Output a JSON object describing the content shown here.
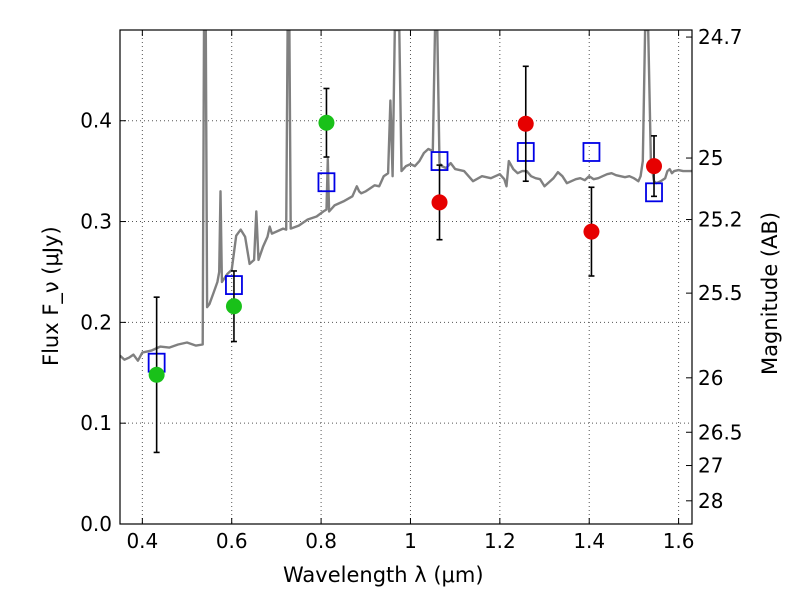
{
  "chart_data": {
    "type": "scatter",
    "xlabel": "Wavelength λ (μm)",
    "ylabel": "Flux F_ν (μJy)",
    "y2label": "Magnitude (AB)",
    "xlim": [
      0.35,
      1.63
    ],
    "ylim": [
      0.0,
      0.49
    ],
    "grid": true,
    "x_ticks": [
      {
        "value": 0.4,
        "label": "0.4"
      },
      {
        "value": 0.6,
        "label": "0.6"
      },
      {
        "value": 0.8,
        "label": "0.8"
      },
      {
        "value": 1.0,
        "label": "1"
      },
      {
        "value": 1.2,
        "label": "1.2"
      },
      {
        "value": 1.4,
        "label": "1.4"
      },
      {
        "value": 1.6,
        "label": "1.6"
      }
    ],
    "y_ticks": [
      {
        "value": 0.0,
        "label": "0.0"
      },
      {
        "value": 0.1,
        "label": "0.1"
      },
      {
        "value": 0.2,
        "label": "0.2"
      },
      {
        "value": 0.3,
        "label": "0.3"
      },
      {
        "value": 0.4,
        "label": "0.4"
      }
    ],
    "y2_ticks": [
      {
        "flux": 0.483,
        "label": "24.7"
      },
      {
        "flux": 0.363,
        "label": "25"
      },
      {
        "flux": 0.302,
        "label": "25.2"
      },
      {
        "flux": 0.229,
        "label": "25.5"
      },
      {
        "flux": 0.145,
        "label": "26"
      },
      {
        "flux": 0.091,
        "label": "26.5"
      },
      {
        "flux": 0.058,
        "label": "27"
      },
      {
        "flux": 0.023,
        "label": "28"
      }
    ],
    "colors": {
      "model": "#808080",
      "green": "#19c119",
      "red": "#e60000",
      "box": "#0000e6",
      "errorbar": "#000000",
      "grid": "#555555"
    },
    "series": [
      {
        "marker": "circle-green",
        "points": [
          {
            "x": 0.432,
            "y": 0.148,
            "err_low": 0.077,
            "err_high": 0.077
          },
          {
            "x": 0.605,
            "y": 0.216,
            "err_low": 0.035,
            "err_high": 0.035
          },
          {
            "x": 0.812,
            "y": 0.398,
            "err_low": 0.034,
            "err_high": 0.034
          }
        ]
      },
      {
        "marker": "circle-red",
        "points": [
          {
            "x": 1.065,
            "y": 0.319,
            "err_low": 0.037,
            "err_high": 0.037
          },
          {
            "x": 1.258,
            "y": 0.397,
            "err_low": 0.057,
            "err_high": 0.057
          },
          {
            "x": 1.405,
            "y": 0.29,
            "err_low": 0.044,
            "err_high": 0.044
          },
          {
            "x": 1.545,
            "y": 0.355,
            "err_low": 0.03,
            "err_high": 0.03
          }
        ]
      },
      {
        "marker": "square-open-blue",
        "points": [
          {
            "x": 0.432,
            "y": 0.16
          },
          {
            "x": 0.605,
            "y": 0.237
          },
          {
            "x": 0.812,
            "y": 0.339
          },
          {
            "x": 1.065,
            "y": 0.36
          },
          {
            "x": 1.258,
            "y": 0.369
          },
          {
            "x": 1.405,
            "y": 0.369
          },
          {
            "x": 1.545,
            "y": 0.329
          }
        ]
      },
      {
        "marker": "line-gray",
        "points": [
          [
            0.35,
            0.167
          ],
          [
            0.36,
            0.163
          ],
          [
            0.37,
            0.165
          ],
          [
            0.38,
            0.168
          ],
          [
            0.39,
            0.162
          ],
          [
            0.4,
            0.17
          ],
          [
            0.42,
            0.172
          ],
          [
            0.44,
            0.176
          ],
          [
            0.46,
            0.175
          ],
          [
            0.48,
            0.178
          ],
          [
            0.5,
            0.18
          ],
          [
            0.52,
            0.177
          ],
          [
            0.535,
            0.178
          ],
          [
            0.538,
            0.49
          ],
          [
            0.542,
            0.49
          ],
          [
            0.545,
            0.215
          ],
          [
            0.55,
            0.218
          ],
          [
            0.56,
            0.23
          ],
          [
            0.568,
            0.24
          ],
          [
            0.572,
            0.25
          ],
          [
            0.575,
            0.33
          ],
          [
            0.578,
            0.24
          ],
          [
            0.59,
            0.248
          ],
          [
            0.6,
            0.252
          ],
          [
            0.61,
            0.286
          ],
          [
            0.62,
            0.292
          ],
          [
            0.63,
            0.285
          ],
          [
            0.64,
            0.258
          ],
          [
            0.65,
            0.262
          ],
          [
            0.655,
            0.31
          ],
          [
            0.66,
            0.262
          ],
          [
            0.67,
            0.275
          ],
          [
            0.68,
            0.285
          ],
          [
            0.685,
            0.295
          ],
          [
            0.69,
            0.288
          ],
          [
            0.7,
            0.29
          ],
          [
            0.715,
            0.293
          ],
          [
            0.722,
            0.292
          ],
          [
            0.725,
            0.49
          ],
          [
            0.729,
            0.49
          ],
          [
            0.732,
            0.293
          ],
          [
            0.75,
            0.296
          ],
          [
            0.77,
            0.302
          ],
          [
            0.79,
            0.305
          ],
          [
            0.805,
            0.31
          ],
          [
            0.812,
            0.312
          ],
          [
            0.815,
            0.362
          ],
          [
            0.818,
            0.31
          ],
          [
            0.83,
            0.316
          ],
          [
            0.85,
            0.32
          ],
          [
            0.87,
            0.325
          ],
          [
            0.88,
            0.335
          ],
          [
            0.885,
            0.33
          ],
          [
            0.89,
            0.328
          ],
          [
            0.9,
            0.33
          ],
          [
            0.91,
            0.333
          ],
          [
            0.92,
            0.336
          ],
          [
            0.93,
            0.335
          ],
          [
            0.94,
            0.345
          ],
          [
            0.95,
            0.348
          ],
          [
            0.955,
            0.42
          ],
          [
            0.96,
            0.345
          ],
          [
            0.965,
            0.49
          ],
          [
            0.975,
            0.49
          ],
          [
            0.98,
            0.35
          ],
          [
            0.99,
            0.355
          ],
          [
            1.0,
            0.357
          ],
          [
            1.01,
            0.355
          ],
          [
            1.02,
            0.36
          ],
          [
            1.03,
            0.368
          ],
          [
            1.04,
            0.372
          ],
          [
            1.05,
            0.37
          ],
          [
            1.055,
            0.49
          ],
          [
            1.06,
            0.49
          ],
          [
            1.065,
            0.358
          ],
          [
            1.07,
            0.355
          ],
          [
            1.08,
            0.353
          ],
          [
            1.09,
            0.358
          ],
          [
            1.1,
            0.352
          ],
          [
            1.12,
            0.35
          ],
          [
            1.14,
            0.34
          ],
          [
            1.16,
            0.345
          ],
          [
            1.18,
            0.343
          ],
          [
            1.2,
            0.347
          ],
          [
            1.21,
            0.342
          ],
          [
            1.215,
            0.335
          ],
          [
            1.22,
            0.36
          ],
          [
            1.23,
            0.352
          ],
          [
            1.24,
            0.348
          ],
          [
            1.25,
            0.35
          ],
          [
            1.26,
            0.35
          ],
          [
            1.27,
            0.345
          ],
          [
            1.28,
            0.343
          ],
          [
            1.29,
            0.342
          ],
          [
            1.3,
            0.335
          ],
          [
            1.31,
            0.339
          ],
          [
            1.32,
            0.343
          ],
          [
            1.33,
            0.349
          ],
          [
            1.34,
            0.345
          ],
          [
            1.35,
            0.338
          ],
          [
            1.36,
            0.34
          ],
          [
            1.37,
            0.342
          ],
          [
            1.38,
            0.343
          ],
          [
            1.39,
            0.341
          ],
          [
            1.4,
            0.345
          ],
          [
            1.41,
            0.342
          ],
          [
            1.42,
            0.343
          ],
          [
            1.43,
            0.345
          ],
          [
            1.44,
            0.347
          ],
          [
            1.45,
            0.348
          ],
          [
            1.46,
            0.346
          ],
          [
            1.47,
            0.345
          ],
          [
            1.48,
            0.344
          ],
          [
            1.49,
            0.345
          ],
          [
            1.5,
            0.343
          ],
          [
            1.51,
            0.34
          ],
          [
            1.515,
            0.345
          ],
          [
            1.52,
            0.36
          ],
          [
            1.525,
            0.49
          ],
          [
            1.532,
            0.49
          ],
          [
            1.538,
            0.36
          ],
          [
            1.545,
            0.34
          ],
          [
            1.55,
            0.338
          ],
          [
            1.56,
            0.34
          ],
          [
            1.57,
            0.343
          ],
          [
            1.575,
            0.35
          ],
          [
            1.58,
            0.352
          ],
          [
            1.585,
            0.348
          ],
          [
            1.59,
            0.35
          ],
          [
            1.6,
            0.351
          ],
          [
            1.61,
            0.35
          ],
          [
            1.62,
            0.35
          ],
          [
            1.63,
            0.35
          ]
        ]
      }
    ]
  }
}
